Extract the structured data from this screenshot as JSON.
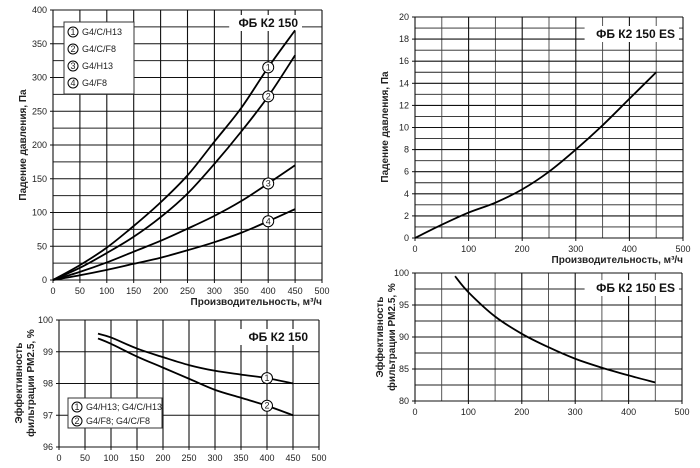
{
  "chart_data": [
    {
      "id": "c1",
      "type": "line",
      "title": "ФБ К2 150",
      "xlabel": "Производительность, м³/ч",
      "ylabel": "Падение давления, Па",
      "xlim": [
        0,
        500
      ],
      "ylim": [
        0,
        400
      ],
      "xticks": [
        "0",
        "50",
        "100",
        "150",
        "200",
        "250",
        "300",
        "350",
        "400",
        "450",
        "500"
      ],
      "yticks": [
        "0",
        "50",
        "100",
        "150",
        "200",
        "250",
        "300",
        "350",
        "400"
      ],
      "xstep": 50,
      "ystep": 50,
      "legend": [
        "G4/C/H13",
        "G4/C/F8",
        "G4/H13",
        "G4/F8"
      ],
      "legend_position": "top-left",
      "series": [
        {
          "name": "G4/C/H13",
          "marker": "1",
          "marker_x": 400,
          "x": [
            0,
            50,
            100,
            150,
            200,
            250,
            300,
            350,
            400,
            450
          ],
          "y": [
            0,
            22,
            48,
            80,
            115,
            155,
            205,
            255,
            315,
            370
          ]
        },
        {
          "name": "G4/C/F8",
          "marker": "2",
          "marker_x": 400,
          "x": [
            0,
            50,
            100,
            150,
            200,
            250,
            300,
            350,
            400,
            450
          ],
          "y": [
            0,
            18,
            40,
            64,
            93,
            128,
            172,
            220,
            272,
            333
          ]
        },
        {
          "name": "G4/H13",
          "marker": "3",
          "marker_x": 400,
          "x": [
            0,
            50,
            100,
            150,
            200,
            250,
            300,
            350,
            400,
            450
          ],
          "y": [
            0,
            12,
            26,
            42,
            58,
            76,
            95,
            117,
            143,
            170
          ]
        },
        {
          "name": "G4/F8",
          "marker": "4",
          "marker_x": 400,
          "x": [
            0,
            50,
            100,
            150,
            200,
            250,
            300,
            350,
            400,
            450
          ],
          "y": [
            0,
            7,
            15,
            24,
            33,
            44,
            56,
            70,
            87,
            105
          ]
        }
      ]
    },
    {
      "id": "c2",
      "type": "line",
      "title": "ФБ К2 150",
      "xlabel": "",
      "ylabel": "Эффективность фильтрации PM2.5, %",
      "ylabel_lines": [
        "Эффективность",
        "фильтрации PM2.5, %"
      ],
      "xlim": [
        0,
        500
      ],
      "ylim": [
        96,
        100
      ],
      "xticks": [
        "0",
        "50",
        "100",
        "150",
        "200",
        "250",
        "300",
        "350",
        "400",
        "450",
        "500"
      ],
      "yticks": [
        "96",
        "97",
        "98",
        "99",
        "100"
      ],
      "xstep": 50,
      "ystep": 1,
      "legend": [
        "G4/H13; G4/C/H13",
        "G4/F8; G4/C/F8"
      ],
      "legend_position": "bottom-left",
      "series": [
        {
          "name": "G4/H13; G4/C/H13",
          "marker": "1",
          "marker_x": 400,
          "x": [
            75,
            100,
            150,
            200,
            250,
            300,
            350,
            400,
            450
          ],
          "y": [
            99.57,
            99.45,
            99.1,
            98.83,
            98.58,
            98.4,
            98.28,
            98.17,
            98.0
          ]
        },
        {
          "name": "G4/F8; G4/C/F8",
          "marker": "2",
          "marker_x": 400,
          "x": [
            75,
            100,
            150,
            200,
            250,
            300,
            350,
            400,
            450
          ],
          "y": [
            99.42,
            99.25,
            98.85,
            98.5,
            98.15,
            97.8,
            97.55,
            97.3,
            97.0
          ]
        }
      ]
    },
    {
      "id": "c3",
      "type": "line",
      "title": "ФБ К2 150 ES",
      "xlabel": "Производительность, м³/ч",
      "ylabel": "Падение давления, Па",
      "xlim": [
        0,
        500
      ],
      "ylim": [
        0,
        20
      ],
      "xticks": [
        "0",
        "100",
        "200",
        "300",
        "400",
        "500"
      ],
      "yticks": [
        "0",
        "2",
        "4",
        "6",
        "8",
        "10",
        "12",
        "14",
        "16",
        "18",
        "20"
      ],
      "xstep": 100,
      "ystep": 2,
      "series": [
        {
          "name": "ФБ К2 150 ES",
          "x": [
            0,
            50,
            100,
            150,
            200,
            250,
            300,
            350,
            400,
            450
          ],
          "y": [
            0,
            1.2,
            2.3,
            3.2,
            4.4,
            6.0,
            8.0,
            10.2,
            12.6,
            15.0
          ]
        }
      ]
    },
    {
      "id": "c4",
      "type": "line",
      "title": "ФБ К2 150 ES",
      "xlabel": "",
      "ylabel": "Эффективность фильтрации PM2.5, %",
      "ylabel_lines": [
        "Эффективность",
        "фильтрации PM2.5, %"
      ],
      "xlim": [
        0,
        500
      ],
      "ylim": [
        80,
        100
      ],
      "xticks": [
        "0",
        "100",
        "200",
        "300",
        "400",
        "500"
      ],
      "yticks": [
        "80",
        "85",
        "90",
        "95",
        "100"
      ],
      "xstep": 100,
      "ystep": 5,
      "series": [
        {
          "name": "ФБ К2 150 ES",
          "x": [
            75,
            100,
            150,
            200,
            250,
            300,
            350,
            400,
            450
          ],
          "y": [
            99.5,
            97,
            93.2,
            90.5,
            88.4,
            86.6,
            85.2,
            84,
            82.9
          ]
        }
      ]
    }
  ]
}
